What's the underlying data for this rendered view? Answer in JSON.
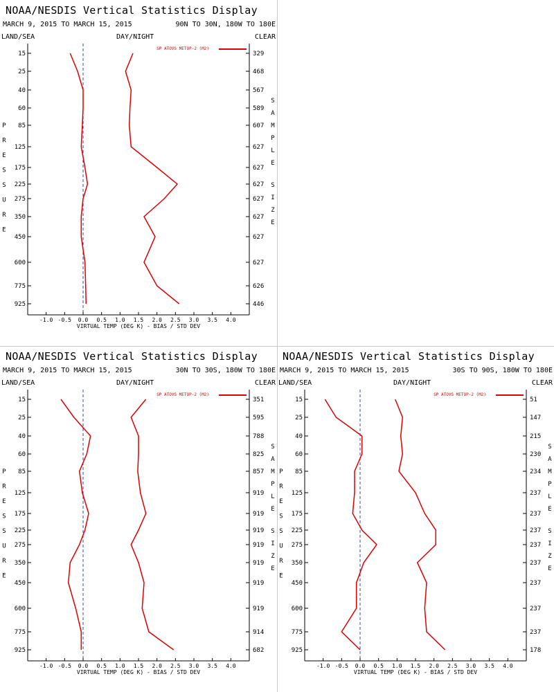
{
  "panels": [
    {
      "title": "NOAA/NESDIS Vertical Statistics Display",
      "date_range": "MARCH 9, 2015 TO MARCH 15, 2015",
      "region": "90N TO 30N, 180W TO 180E",
      "land_sea": "LAND/SEA",
      "day_night": "DAY/NIGHT",
      "clear": "CLEAR",
      "legend_label": "SP ATOVS METOP-2 (M2)",
      "left_axis_label": "PRESSURE",
      "right_axis_label": "SAMPLE SIZE",
      "x_axis_label": "VIRTUAL TEMP (DEG K) - BIAS / STD DEV"
    },
    {
      "title": "NOAA/NESDIS Vertical Statistics Display",
      "date_range": "MARCH 9, 2015 TO MARCH 15, 2015",
      "region": "30N TO 30S, 180W TO 180E",
      "land_sea": "LAND/SEA",
      "day_night": "DAY/NIGHT",
      "clear": "CLEAR",
      "legend_label": "SP ATOVS METOP-2 (M2)",
      "left_axis_label": "PRESSURE",
      "right_axis_label": "SAMPLE SIZE",
      "x_axis_label": "VIRTUAL TEMP (DEG K) - BIAS / STD DEV"
    },
    {
      "title": "NOAA/NESDIS Vertical Statistics Display",
      "date_range": "MARCH 9, 2015 TO MARCH 15, 2015",
      "region": "30S TO 90S, 180W TO 180E",
      "land_sea": "LAND/SEA",
      "day_night": "DAY/NIGHT",
      "clear": "CLEAR",
      "legend_label": "SP ATOVS METOP-2 (M2)",
      "left_axis_label": "PRESSURE",
      "right_axis_label": "SAMPLE SIZE",
      "x_axis_label": "VIRTUAL TEMP (DEG K) - BIAS / STD DEV"
    }
  ],
  "colors": {
    "series": "#dd0000",
    "axis": "#000000",
    "zero_line": "#3344aa"
  },
  "chart_data": [
    {
      "type": "line",
      "title": "NOAA/NESDIS Vertical Statistics Display",
      "xlabel": "VIRTUAL TEMP (DEG K) - BIAS / STD DEV",
      "ylabel": "PRESSURE",
      "xlim": [
        -1.5,
        4.5
      ],
      "x_ticks": [
        "-1.0",
        "-0.5",
        "0.0",
        "0.5",
        "1.0",
        "1.5",
        "2.0",
        "2.5",
        "3.0",
        "3.5",
        "4.0"
      ],
      "pressure_levels": [
        "15",
        "25",
        "40",
        "60",
        "85",
        "125",
        "175",
        "225",
        "275",
        "350",
        "450",
        "600",
        "775",
        "925"
      ],
      "sample_size": [
        "329",
        "468",
        "567",
        "589",
        "607",
        "627",
        "627",
        "627",
        "627",
        "627",
        "627",
        "627",
        "626",
        "446"
      ],
      "series": [
        {
          "name": "SP ATOVS METOP-2 (M2)",
          "role": "bias",
          "values": [
            -0.35,
            -0.15,
            0.0,
            0.0,
            -0.02,
            -0.05,
            0.05,
            0.12,
            0.0,
            -0.05,
            -0.05,
            0.05,
            0.07,
            0.08
          ]
        },
        {
          "name": "SP ATOVS METOP-2 (M2)",
          "role": "std_dev",
          "values": [
            1.35,
            1.15,
            1.3,
            1.27,
            1.25,
            1.3,
            2.0,
            2.55,
            2.2,
            1.65,
            1.95,
            1.65,
            2.0,
            2.6
          ]
        }
      ]
    },
    {
      "type": "line",
      "title": "NOAA/NESDIS Vertical Statistics Display",
      "xlabel": "VIRTUAL TEMP (DEG K) - BIAS / STD DEV",
      "ylabel": "PRESSURE",
      "xlim": [
        -1.5,
        4.5
      ],
      "x_ticks": [
        "-1.0",
        "-0.5",
        "0.0",
        "0.5",
        "1.0",
        "1.5",
        "2.0",
        "2.5",
        "3.0",
        "3.5",
        "4.0"
      ],
      "pressure_levels": [
        "15",
        "25",
        "40",
        "60",
        "85",
        "125",
        "175",
        "225",
        "275",
        "350",
        "450",
        "600",
        "775",
        "925"
      ],
      "sample_size": [
        "351",
        "595",
        "788",
        "825",
        "857",
        "919",
        "919",
        "919",
        "919",
        "919",
        "919",
        "919",
        "914",
        "682"
      ],
      "series": [
        {
          "name": "SP ATOVS METOP-2 (M2)",
          "role": "bias",
          "values": [
            -0.6,
            -0.25,
            0.2,
            0.1,
            -0.1,
            -0.02,
            0.15,
            0.05,
            -0.1,
            -0.35,
            -0.4,
            -0.2,
            -0.05,
            -0.05
          ]
        },
        {
          "name": "SP ATOVS METOP-2 (M2)",
          "role": "std_dev",
          "values": [
            1.7,
            1.3,
            1.5,
            1.5,
            1.48,
            1.55,
            1.7,
            1.5,
            1.3,
            1.5,
            1.65,
            1.6,
            1.78,
            2.45
          ]
        }
      ]
    },
    {
      "type": "line",
      "title": "NOAA/NESDIS Vertical Statistics Display",
      "xlabel": "VIRTUAL TEMP (DEG K) - BIAS / STD DEV",
      "ylabel": "PRESSURE",
      "xlim": [
        -1.5,
        4.5
      ],
      "x_ticks": [
        "-1.0",
        "-0.5",
        "0.0",
        "0.5",
        "1.0",
        "1.5",
        "2.0",
        "2.5",
        "3.0",
        "3.5",
        "4.0"
      ],
      "pressure_levels": [
        "15",
        "25",
        "40",
        "60",
        "85",
        "125",
        "175",
        "225",
        "275",
        "350",
        "450",
        "600",
        "775",
        "925"
      ],
      "sample_size": [
        "51",
        "147",
        "215",
        "230",
        "234",
        "237",
        "237",
        "237",
        "237",
        "237",
        "237",
        "237",
        "237",
        "178"
      ],
      "series": [
        {
          "name": "SP ATOVS METOP-2 (M2)",
          "role": "bias",
          "values": [
            -0.95,
            -0.65,
            0.05,
            0.05,
            -0.15,
            -0.15,
            -0.2,
            0.05,
            0.45,
            0.1,
            -0.1,
            -0.1,
            -0.5,
            0.0
          ]
        },
        {
          "name": "SP ATOVS METOP-2 (M2)",
          "role": "std_dev",
          "values": [
            0.95,
            1.15,
            1.1,
            1.15,
            1.05,
            1.5,
            1.75,
            2.05,
            2.05,
            1.55,
            1.8,
            1.75,
            1.8,
            2.3
          ]
        }
      ]
    }
  ]
}
